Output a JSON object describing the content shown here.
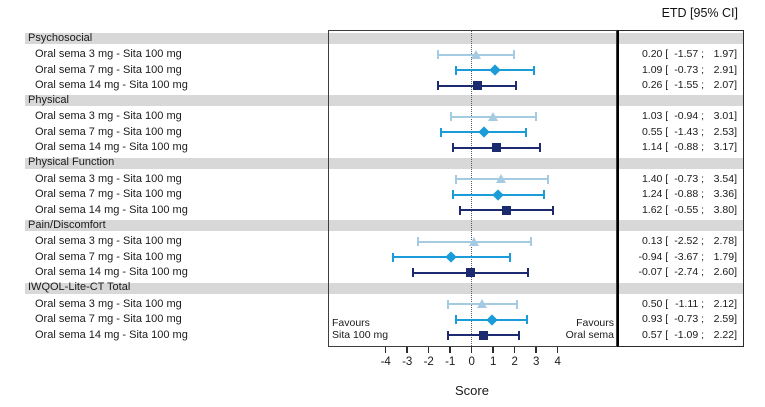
{
  "header": {
    "etd_col_label": "ETD [95% CI]"
  },
  "favours": {
    "left_line1": "Favours",
    "left_line2": "Sita 100 mg",
    "right_line1": "Favours",
    "right_line2": "Oral sema"
  },
  "colors": {
    "band_gray": "#d8d8d8",
    "box_border": "#3d3d3d",
    "zero_line": "#5a5a5a",
    "dose3": "#a5cbe2",
    "dose7": "#1b9bd8",
    "dose14": "#1c2b6f"
  },
  "chart_data": {
    "type": "forest",
    "title": "",
    "xlabel": "Score",
    "value_column_header": "ETD [95% CI]",
    "x_ticks": [
      -4,
      -3,
      -2,
      -1,
      0,
      1,
      2,
      3,
      4
    ],
    "xlim": [
      -6.7,
      6.7
    ],
    "zero_reference": 0,
    "grid": false,
    "series": [
      {
        "name": "Oral sema 3 mg",
        "marker": "triangle",
        "color": "#a5cbe2"
      },
      {
        "name": "Oral sema 7 mg",
        "marker": "diamond",
        "color": "#1b9bd8"
      },
      {
        "name": "Oral sema 14 mg",
        "marker": "square",
        "color": "#1c2b6f"
      }
    ],
    "groups": [
      {
        "label": "Psychosocial",
        "rows": [
          {
            "label": "Oral sema 3 mg - Sita 100 mg",
            "est": 0.2,
            "lo": -1.57,
            "hi": 1.97,
            "est_str": "0.20",
            "lo_str": "-1.57",
            "hi_str": "1.97"
          },
          {
            "label": "Oral sema 7 mg - Sita 100 mg",
            "est": 1.09,
            "lo": -0.73,
            "hi": 2.91,
            "est_str": "1.09",
            "lo_str": "-0.73",
            "hi_str": "2.91"
          },
          {
            "label": "Oral sema 14 mg - Sita 100 mg",
            "est": 0.26,
            "lo": -1.55,
            "hi": 2.07,
            "est_str": "0.26",
            "lo_str": "-1.55",
            "hi_str": "2.07"
          }
        ]
      },
      {
        "label": "Physical",
        "rows": [
          {
            "label": "Oral sema 3 mg - Sita 100 mg",
            "est": 1.03,
            "lo": -0.94,
            "hi": 3.01,
            "est_str": "1.03",
            "lo_str": "-0.94",
            "hi_str": "3.01"
          },
          {
            "label": "Oral sema 7 mg - Sita 100 mg",
            "est": 0.55,
            "lo": -1.43,
            "hi": 2.53,
            "est_str": "0.55",
            "lo_str": "-1.43",
            "hi_str": "2.53"
          },
          {
            "label": "Oral sema 14 mg - Sita 100 mg",
            "est": 1.14,
            "lo": -0.88,
            "hi": 3.17,
            "est_str": "1.14",
            "lo_str": "-0.88",
            "hi_str": "3.17"
          }
        ]
      },
      {
        "label": "Physical Function",
        "rows": [
          {
            "label": "Oral sema 3 mg - Sita 100 mg",
            "est": 1.4,
            "lo": -0.73,
            "hi": 3.54,
            "est_str": "1.40",
            "lo_str": "-0.73",
            "hi_str": "3.54"
          },
          {
            "label": "Oral sema 7 mg - Sita 100 mg",
            "est": 1.24,
            "lo": -0.88,
            "hi": 3.36,
            "est_str": "1.24",
            "lo_str": "-0.88",
            "hi_str": "3.36"
          },
          {
            "label": "Oral sema 14 mg - Sita 100 mg",
            "est": 1.62,
            "lo": -0.55,
            "hi": 3.8,
            "est_str": "1.62",
            "lo_str": "-0.55",
            "hi_str": "3.80"
          }
        ]
      },
      {
        "label": "Pain/Discomfort",
        "rows": [
          {
            "label": "Oral sema 3 mg - Sita 100 mg",
            "est": 0.13,
            "lo": -2.52,
            "hi": 2.78,
            "est_str": "0.13",
            "lo_str": "-2.52",
            "hi_str": "2.78"
          },
          {
            "label": "Oral sema 7 mg - Sita 100 mg",
            "est": -0.94,
            "lo": -3.67,
            "hi": 1.79,
            "est_str": "-0.94",
            "lo_str": "-3.67",
            "hi_str": "1.79"
          },
          {
            "label": "Oral sema 14 mg - Sita 100 mg",
            "est": -0.07,
            "lo": -2.74,
            "hi": 2.6,
            "est_str": "-0.07",
            "lo_str": "-2.74",
            "hi_str": "2.60"
          }
        ]
      },
      {
        "label": "IWQOL-Lite-CT Total",
        "rows": [
          {
            "label": "Oral sema 3 mg - Sita 100 mg",
            "est": 0.5,
            "lo": -1.11,
            "hi": 2.12,
            "est_str": "0.50",
            "lo_str": "-1.11",
            "hi_str": "2.12"
          },
          {
            "label": "Oral sema 7 mg - Sita 100 mg",
            "est": 0.93,
            "lo": -0.73,
            "hi": 2.59,
            "est_str": "0.93",
            "lo_str": "-0.73",
            "hi_str": "2.59"
          },
          {
            "label": "Oral sema 14 mg - Sita 100 mg",
            "est": 0.57,
            "lo": -1.09,
            "hi": 2.22,
            "est_str": "0.57",
            "lo_str": "-1.09",
            "hi_str": "2.22"
          }
        ]
      }
    ],
    "annotations": {
      "favours_left": "Favours Sita 100 mg",
      "favours_right": "Favours Oral sema"
    }
  }
}
